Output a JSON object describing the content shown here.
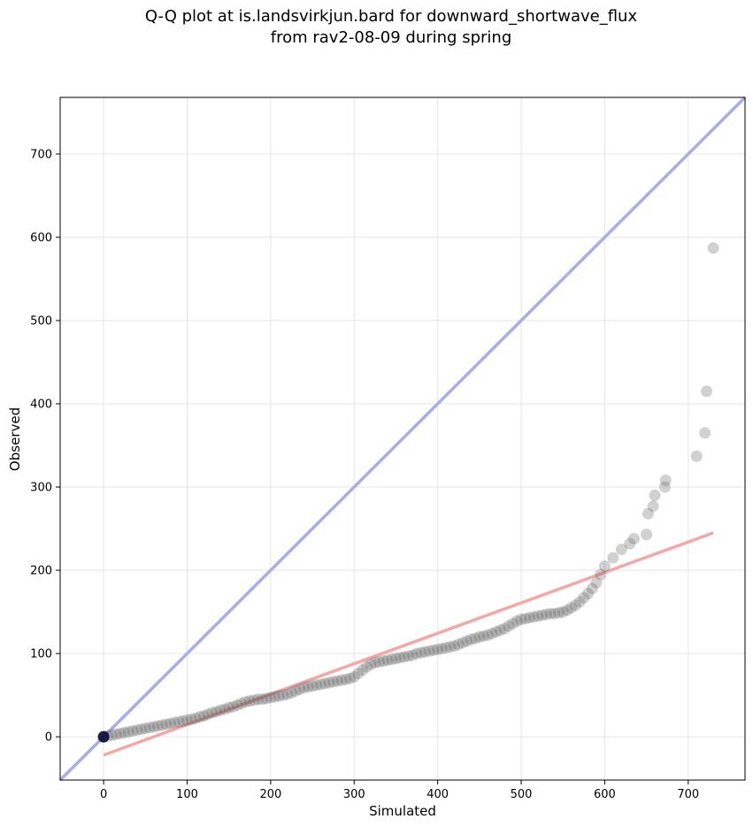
{
  "chart_data": {
    "type": "scatter",
    "title": "Q-Q plot at is.landsvirkjun.bard for downward_shortwave_flux",
    "subtitle": "from rav2-08-09 during spring",
    "xlabel": "Simulated",
    "ylabel": "Observed",
    "xlim": [
      -52,
      768
    ],
    "ylim": [
      -52,
      768
    ],
    "xticks": [
      0,
      100,
      200,
      300,
      400,
      500,
      600,
      700
    ],
    "yticks": [
      0,
      100,
      200,
      300,
      400,
      500,
      600,
      700
    ],
    "grid": true,
    "reference_line": {
      "points": [
        [
          -52,
          -52
        ],
        [
          768,
          768
        ]
      ],
      "color": "#aaaaf0"
    },
    "fit_line": {
      "points": [
        [
          0,
          -22
        ],
        [
          730,
          245
        ]
      ],
      "color": "#f4a7a7"
    },
    "origin_point": [
      0,
      0
    ],
    "point_color": "#555555",
    "origin_color": "#0b0b3a",
    "x": [
      0,
      5,
      10,
      15,
      20,
      25,
      30,
      35,
      40,
      45,
      50,
      55,
      60,
      65,
      70,
      75,
      80,
      85,
      90,
      95,
      100,
      105,
      110,
      115,
      120,
      125,
      130,
      135,
      140,
      145,
      150,
      155,
      160,
      165,
      170,
      175,
      180,
      185,
      190,
      195,
      200,
      205,
      210,
      215,
      220,
      225,
      230,
      235,
      240,
      245,
      250,
      255,
      260,
      265,
      270,
      275,
      280,
      285,
      290,
      295,
      300,
      305,
      310,
      315,
      320,
      325,
      330,
      335,
      340,
      345,
      350,
      355,
      360,
      365,
      370,
      375,
      380,
      385,
      390,
      395,
      400,
      405,
      410,
      415,
      420,
      425,
      430,
      435,
      440,
      445,
      450,
      455,
      460,
      465,
      470,
      475,
      480,
      485,
      490,
      495,
      500,
      505,
      510,
      515,
      520,
      525,
      530,
      535,
      540,
      545,
      550,
      555,
      560,
      565,
      570,
      575,
      580,
      585,
      590,
      595,
      600,
      610,
      620,
      630,
      635,
      650,
      652,
      658,
      660,
      672,
      673,
      710,
      720,
      722,
      730
    ],
    "y": [
      0,
      1,
      2,
      3,
      4,
      5,
      6,
      7,
      8,
      9,
      10,
      11,
      12,
      13,
      14,
      15,
      16,
      17,
      18,
      19,
      20,
      21,
      22,
      24,
      25,
      27,
      29,
      30,
      32,
      33,
      35,
      36,
      38,
      40,
      42,
      43,
      44,
      45,
      45,
      46,
      47,
      48,
      49,
      50,
      51,
      53,
      55,
      57,
      59,
      60,
      61,
      62,
      63,
      64,
      65,
      66,
      67,
      68,
      69,
      70,
      72,
      76,
      80,
      84,
      87,
      89,
      90,
      91,
      92,
      93,
      94,
      95,
      96,
      97,
      98,
      100,
      101,
      102,
      103,
      104,
      105,
      106,
      107,
      108,
      109,
      111,
      113,
      115,
      117,
      118,
      120,
      121,
      122,
      124,
      126,
      128,
      130,
      133,
      136,
      139,
      141,
      142,
      143,
      144,
      145,
      146,
      147,
      148,
      148,
      149,
      150,
      152,
      155,
      158,
      162,
      167,
      172,
      178,
      185,
      195,
      205,
      215,
      225,
      232,
      238,
      243,
      268,
      277,
      290,
      300,
      308,
      337,
      365,
      415,
      587
    ]
  }
}
